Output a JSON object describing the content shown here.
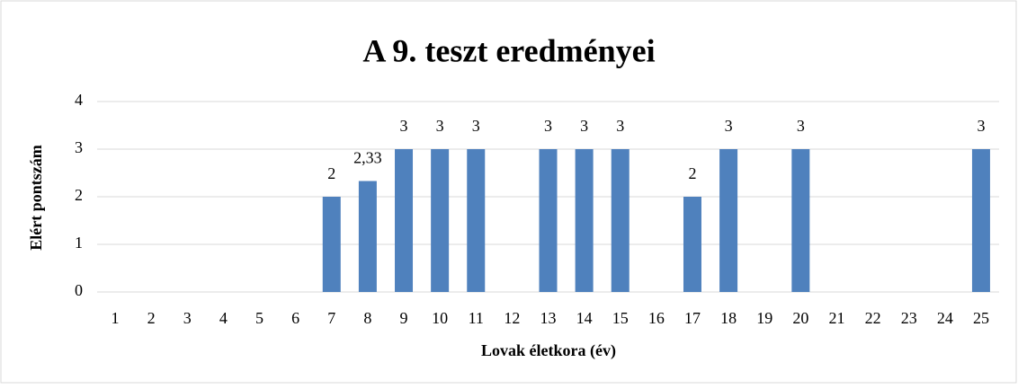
{
  "chart_data": {
    "type": "bar",
    "title": "A 9. teszt eredményei",
    "xlabel": "Lovak életkora (év)",
    "ylabel": "Elért pontszám",
    "categories": [
      "1",
      "2",
      "3",
      "4",
      "5",
      "6",
      "7",
      "8",
      "9",
      "10",
      "11",
      "12",
      "13",
      "14",
      "15",
      "16",
      "17",
      "18",
      "19",
      "20",
      "21",
      "22",
      "23",
      "24",
      "25"
    ],
    "values": [
      null,
      null,
      null,
      null,
      null,
      null,
      2,
      2.33,
      3,
      3,
      3,
      null,
      3,
      3,
      3,
      null,
      2,
      3,
      null,
      3,
      null,
      null,
      null,
      null,
      3
    ],
    "value_labels": [
      null,
      null,
      null,
      null,
      null,
      null,
      "2",
      "2,33",
      "3",
      "3",
      "3",
      null,
      "3",
      "3",
      "3",
      null,
      "2",
      "3",
      null,
      "3",
      null,
      null,
      null,
      null,
      "3"
    ],
    "color": "#4f81bd",
    "ylim": [
      0,
      4
    ],
    "yticks": [
      0,
      1,
      2,
      3,
      4
    ],
    "grid": true
  }
}
